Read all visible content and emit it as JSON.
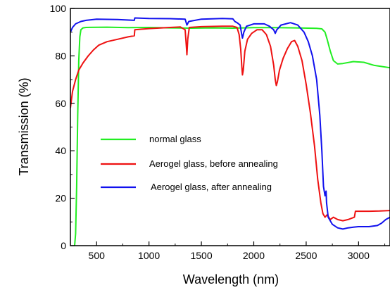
{
  "chart_data": {
    "type": "line",
    "title": "",
    "xlabel": "Wavelength (nm)",
    "ylabel": "Transmission (%)",
    "xlim": [
      250,
      3300
    ],
    "ylim": [
      0,
      100
    ],
    "x_ticks": [
      500,
      1000,
      1500,
      2000,
      2500,
      3000
    ],
    "y_ticks": [
      0,
      20,
      40,
      60,
      80,
      100
    ],
    "grid": false,
    "legend_position": "center-left",
    "series": [
      {
        "name": "normal glass",
        "color": "#22ee22",
        "points": [
          [
            290,
            0
          ],
          [
            300,
            5
          ],
          [
            310,
            25
          ],
          [
            320,
            55
          ],
          [
            330,
            78
          ],
          [
            340,
            88
          ],
          [
            350,
            91
          ],
          [
            370,
            91.8
          ],
          [
            400,
            92
          ],
          [
            600,
            92.1
          ],
          [
            800,
            91.9
          ],
          [
            1000,
            92
          ],
          [
            1200,
            91.8
          ],
          [
            1400,
            91.7
          ],
          [
            1600,
            91.8
          ],
          [
            1800,
            91.7
          ],
          [
            2000,
            91.9
          ],
          [
            2200,
            91.9
          ],
          [
            2400,
            91.8
          ],
          [
            2600,
            91.6
          ],
          [
            2650,
            91.4
          ],
          [
            2680,
            90
          ],
          [
            2700,
            87
          ],
          [
            2730,
            82
          ],
          [
            2760,
            78
          ],
          [
            2800,
            76.6
          ],
          [
            2850,
            76.8
          ],
          [
            2950,
            77.6
          ],
          [
            3050,
            77.3
          ],
          [
            3150,
            76
          ],
          [
            3300,
            75
          ]
        ]
      },
      {
        "name": "Aerogel glass, before annealing",
        "color": "#ee1111",
        "points": [
          [
            250,
            58
          ],
          [
            270,
            65
          ],
          [
            300,
            70
          ],
          [
            330,
            74
          ],
          [
            370,
            77
          ],
          [
            420,
            80
          ],
          [
            470,
            82.5
          ],
          [
            520,
            84.5
          ],
          [
            600,
            86
          ],
          [
            700,
            87
          ],
          [
            800,
            88
          ],
          [
            860,
            88.5
          ],
          [
            865,
            91
          ],
          [
            1000,
            91.5
          ],
          [
            1200,
            92
          ],
          [
            1300,
            92.2
          ],
          [
            1345,
            91
          ],
          [
            1355,
            85
          ],
          [
            1362,
            80.5
          ],
          [
            1370,
            87
          ],
          [
            1385,
            92
          ],
          [
            1500,
            92.3
          ],
          [
            1700,
            92.5
          ],
          [
            1800,
            92.5
          ],
          [
            1840,
            92
          ],
          [
            1860,
            89
          ],
          [
            1875,
            83
          ],
          [
            1885,
            76
          ],
          [
            1892,
            72
          ],
          [
            1900,
            74
          ],
          [
            1915,
            82
          ],
          [
            1940,
            87
          ],
          [
            1980,
            89.5
          ],
          [
            2030,
            91
          ],
          [
            2080,
            91
          ],
          [
            2120,
            89
          ],
          [
            2160,
            84
          ],
          [
            2190,
            76
          ],
          [
            2205,
            70
          ],
          [
            2215,
            67.5
          ],
          [
            2225,
            69
          ],
          [
            2245,
            74
          ],
          [
            2280,
            79
          ],
          [
            2320,
            83
          ],
          [
            2360,
            86
          ],
          [
            2390,
            86.5
          ],
          [
            2420,
            84
          ],
          [
            2460,
            78
          ],
          [
            2500,
            68
          ],
          [
            2540,
            56
          ],
          [
            2580,
            42
          ],
          [
            2610,
            28
          ],
          [
            2640,
            18
          ],
          [
            2660,
            13.5
          ],
          [
            2680,
            12
          ],
          [
            2700,
            13
          ],
          [
            2730,
            11
          ],
          [
            2760,
            12
          ],
          [
            2800,
            11
          ],
          [
            2850,
            10.5
          ],
          [
            2900,
            11
          ],
          [
            2960,
            12
          ],
          [
            2970,
            14.5
          ],
          [
            3100,
            14.5
          ],
          [
            3200,
            14.6
          ],
          [
            3300,
            14.8
          ]
        ]
      },
      {
        "name": "Aerogel glass, after annealing",
        "color": "#1111ee",
        "points": [
          [
            250,
            90
          ],
          [
            270,
            92
          ],
          [
            300,
            93.5
          ],
          [
            350,
            94.5
          ],
          [
            400,
            95
          ],
          [
            500,
            95.5
          ],
          [
            700,
            95.3
          ],
          [
            860,
            95
          ],
          [
            865,
            96
          ],
          [
            1000,
            95.8
          ],
          [
            1200,
            95.7
          ],
          [
            1345,
            95.5
          ],
          [
            1362,
            93
          ],
          [
            1380,
            94.5
          ],
          [
            1500,
            95.5
          ],
          [
            1700,
            95.8
          ],
          [
            1800,
            95.6
          ],
          [
            1820,
            94.5
          ],
          [
            1840,
            94
          ],
          [
            1870,
            93
          ],
          [
            1885,
            89
          ],
          [
            1892,
            87.5
          ],
          [
            1905,
            90
          ],
          [
            1930,
            92.5
          ],
          [
            2000,
            93.5
          ],
          [
            2100,
            93.5
          ],
          [
            2150,
            92.5
          ],
          [
            2190,
            91
          ],
          [
            2205,
            89.5
          ],
          [
            2220,
            91
          ],
          [
            2260,
            93
          ],
          [
            2350,
            94
          ],
          [
            2420,
            93
          ],
          [
            2480,
            90
          ],
          [
            2520,
            86
          ],
          [
            2560,
            80
          ],
          [
            2600,
            70
          ],
          [
            2630,
            55
          ],
          [
            2650,
            40
          ],
          [
            2665,
            25
          ],
          [
            2680,
            21
          ],
          [
            2690,
            23
          ],
          [
            2695,
            18
          ],
          [
            2710,
            12
          ],
          [
            2750,
            9
          ],
          [
            2800,
            7.5
          ],
          [
            2850,
            7
          ],
          [
            2900,
            7.5
          ],
          [
            2950,
            7.8
          ],
          [
            3000,
            8
          ],
          [
            3100,
            8
          ],
          [
            3180,
            8.5
          ],
          [
            3220,
            9.5
          ],
          [
            3260,
            11
          ],
          [
            3300,
            12
          ]
        ]
      }
    ]
  }
}
